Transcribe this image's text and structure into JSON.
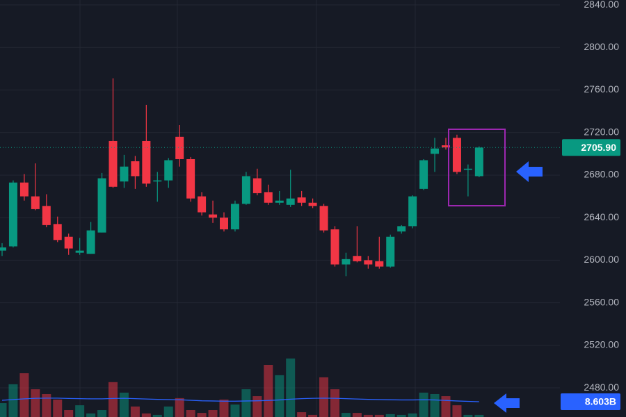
{
  "chart_data": {
    "type": "candlestick",
    "open": [
      2609,
      2613,
      2673,
      2660,
      2651,
      2634,
      2622,
      2607,
      2606,
      2626,
      2712,
      2674,
      2693,
      2712,
      2674,
      2675,
      2716,
      2695,
      2660,
      2643,
      2640,
      2629,
      2653,
      2677,
      2664,
      2654,
      2652,
      2659,
      2654,
      2651,
      2629,
      2596,
      2604,
      2600,
      2599,
      2594,
      2627,
      2632,
      2667,
      2700,
      2708,
      2715,
      2685,
      2679
    ],
    "high": [
      2616,
      2675,
      2681,
      2691,
      2662,
      2641,
      2625,
      2621,
      2636,
      2682,
      2771,
      2699,
      2698,
      2746,
      2683,
      2696,
      2727,
      2697,
      2664,
      2656,
      2645,
      2656,
      2683,
      2686,
      2671,
      2665,
      2685,
      2665,
      2658,
      2653,
      2632,
      2607,
      2632,
      2604,
      2622,
      2624,
      2633,
      2661,
      2695,
      2715,
      2715,
      2718,
      2690,
      2707
    ],
    "low": [
      2604,
      2612,
      2656,
      2647,
      2631,
      2617,
      2605,
      2605,
      2606,
      2626,
      2668,
      2668,
      2667,
      2669,
      2655,
      2668,
      2688,
      2655,
      2642,
      2635,
      2627,
      2627,
      2652,
      2661,
      2652,
      2652,
      2650,
      2651,
      2649,
      2626,
      2594,
      2585,
      2598,
      2592,
      2592,
      2593,
      2625,
      2630,
      2666,
      2683,
      2704,
      2681,
      2660,
      2678
    ],
    "close": [
      2612,
      2673,
      2660,
      2648,
      2633,
      2619,
      2611,
      2609,
      2628,
      2677,
      2669,
      2688,
      2679,
      2672,
      2675,
      2694,
      2695,
      2658,
      2645,
      2640,
      2629,
      2653,
      2679,
      2663,
      2654,
      2656,
      2658,
      2654,
      2651,
      2628,
      2596,
      2601,
      2599,
      2596,
      2594,
      2622,
      2632,
      2660,
      2694,
      2705,
      2706,
      2683,
      2686,
      2705.9
    ],
    "volume": [
      7.8,
      18.4,
      24.6,
      15.6,
      12.9,
      9.8,
      3.9,
      6.6,
      2,
      3.9,
      19.6,
      13.7,
      5.9,
      2,
      1.2,
      5.9,
      10.6,
      3.9,
      2.3,
      3.9,
      9.8,
      7,
      15.6,
      11.7,
      29.3,
      23.5,
      32.9,
      2.7,
      1.2,
      22.3,
      15.6,
      2.3,
      2.3,
      1.2,
      1.2,
      1.6,
      1.2,
      2,
      13.7,
      12.9,
      11.7,
      6.6,
      1.2,
      1.2
    ],
    "volume_ma": [
      9.4,
      9.8,
      10.2,
      10.5,
      10.6,
      10.6,
      10.4,
      10.3,
      10.2,
      10.2,
      10.4,
      10.5,
      10.3,
      10.1,
      9.9,
      9.8,
      9.7,
      9.4,
      9.1,
      9.0,
      8.9,
      8.9,
      9.0,
      9.1,
      9.3,
      9.6,
      10.0,
      10.3,
      10.5,
      10.6,
      10.5,
      10.3,
      10.1,
      9.9,
      9.8,
      9.7,
      9.6,
      9.6,
      9.7,
      9.6,
      9.3,
      9.0,
      8.8,
      8.603
    ],
    "up_color": "#089981",
    "down_color": "#f23645",
    "ma_color": "#2962ff",
    "ylim": [
      2452.6,
      2844.6
    ],
    "yticks": [
      {
        "value": 2480,
        "label": "2480.00"
      },
      {
        "value": 2520,
        "label": "2520.00"
      },
      {
        "value": 2560,
        "label": "2560.00"
      },
      {
        "value": 2600,
        "label": "2600.00"
      },
      {
        "value": 2640,
        "label": "2640.00"
      },
      {
        "value": 2680,
        "label": "2680.00"
      },
      {
        "value": 2720,
        "label": "2720.00"
      },
      {
        "value": 2760,
        "label": "2760.00"
      },
      {
        "value": 2800,
        "label": "2800.00"
      },
      {
        "value": 2840,
        "label": "2840.00"
      }
    ],
    "grid": true,
    "last_price": {
      "value": 2705.9,
      "label": "2705.90"
    },
    "last_volume_ma": {
      "value": 8.603,
      "label": "8.603B"
    }
  }
}
